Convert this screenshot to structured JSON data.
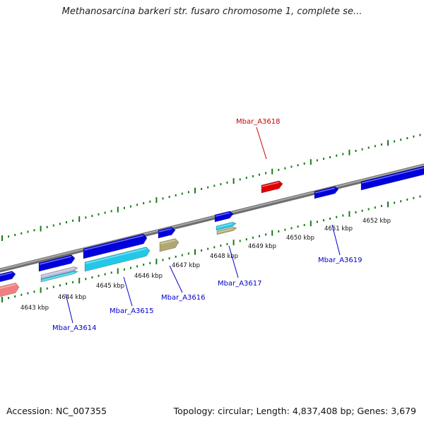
{
  "title": "Methanosarcina barkeri str. fusaro chromosome 1, complete se...",
  "footer": {
    "accession": "Accession: NC_007355",
    "stats": "Topology: circular; Length: 4,837,408 bp; Genes: 3,679"
  },
  "colors": {
    "tick_green": "#1a7a1a",
    "backbone": "#8a8a8a",
    "gene_blue": "#0000dd",
    "gene_cyan": "#22c8e8",
    "gene_red": "#dd0000",
    "gene_olive": "#b0a870",
    "gene_pink": "#f08080",
    "label_blue": "#0000cc",
    "label_red": "#cc0000"
  },
  "scale_labels": [
    "4643 kbp",
    "4644 kbp",
    "4645 kbp",
    "4646 kbp",
    "4647 kbp",
    "4648 kbp",
    "4649 kbp",
    "4650 kbp",
    "4651 kbp",
    "4652 kbp"
  ],
  "gene_labels": [
    {
      "name": "Mbar_A3618",
      "color": "red"
    },
    {
      "name": "Mbar_A3614",
      "color": "blue"
    },
    {
      "name": "Mbar_A3615",
      "color": "blue"
    },
    {
      "name": "Mbar_A3616",
      "color": "blue"
    },
    {
      "name": "Mbar_A3617",
      "color": "blue"
    },
    {
      "name": "Mbar_A3619",
      "color": "blue"
    }
  ]
}
